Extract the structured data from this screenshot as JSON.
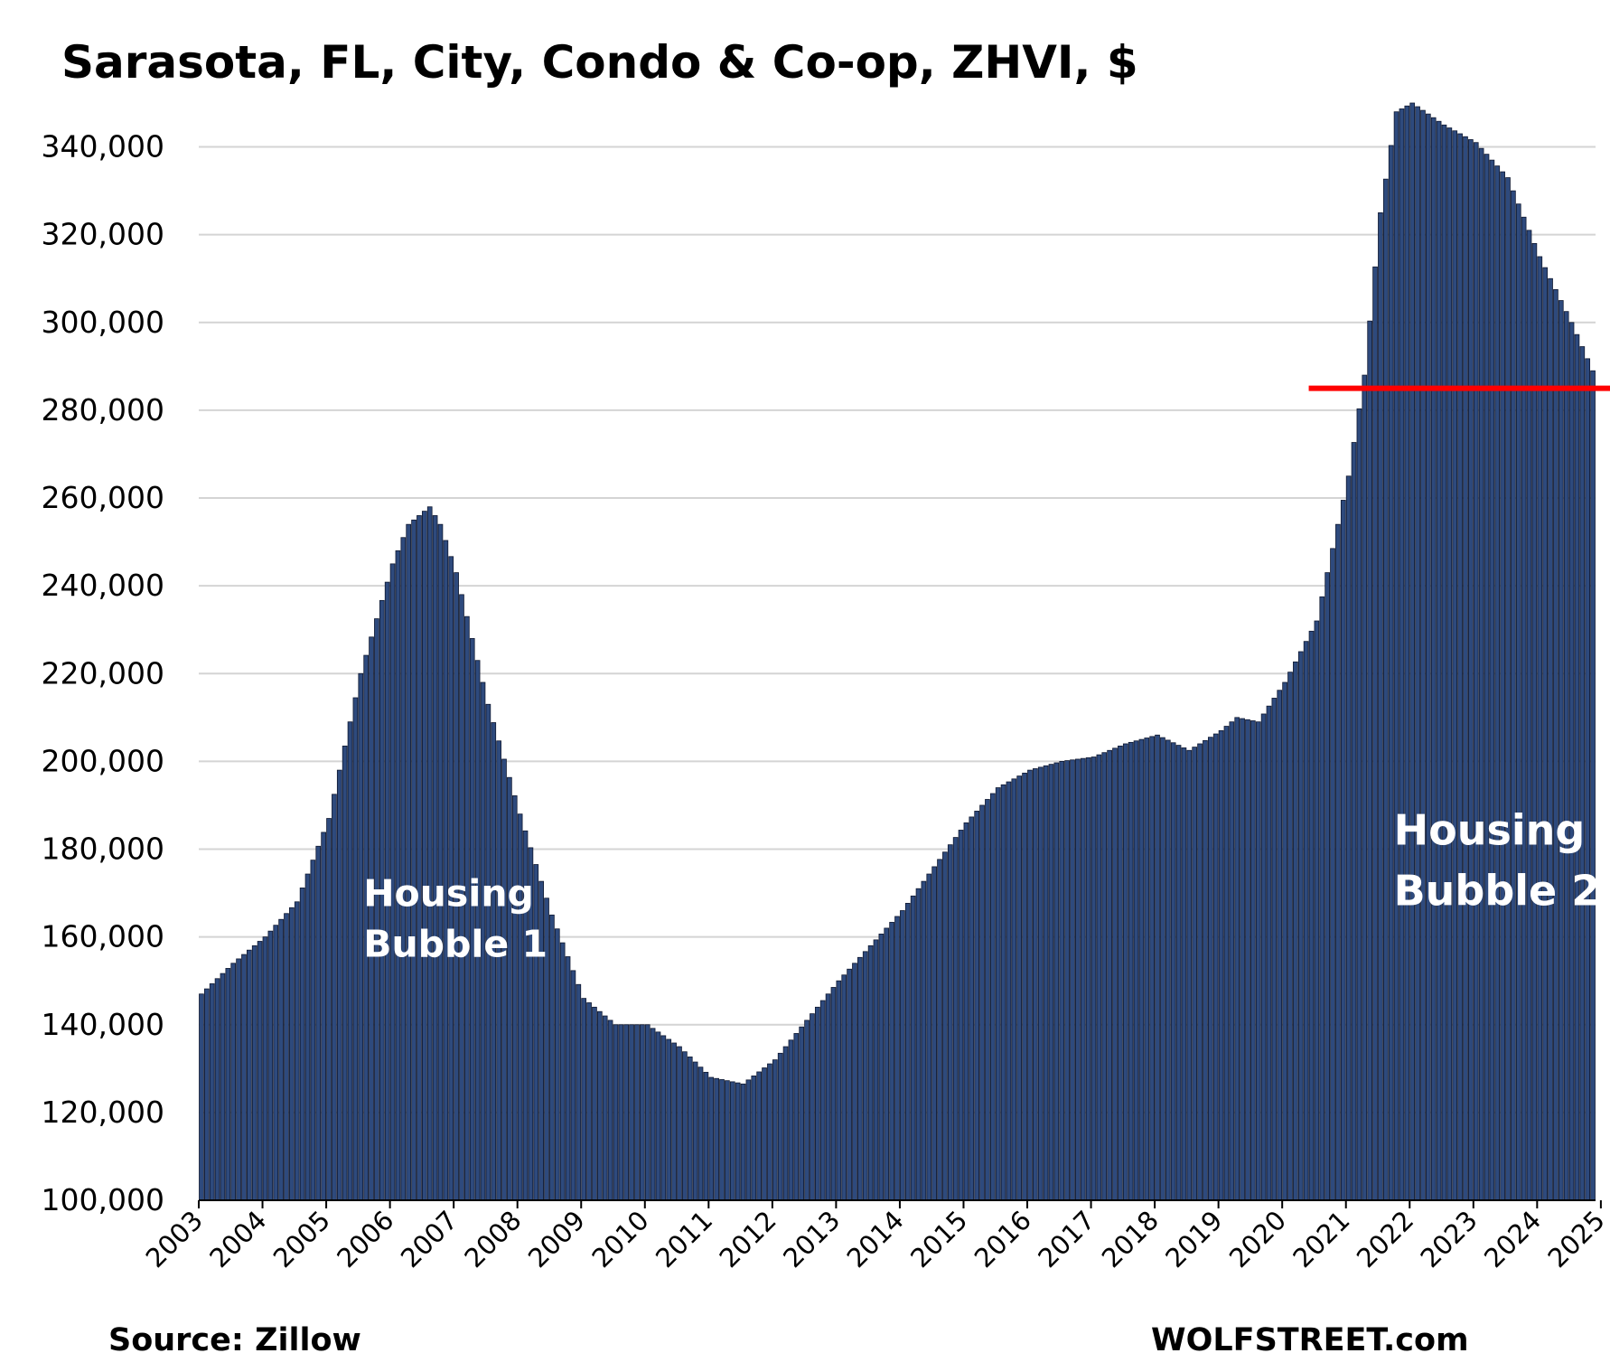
{
  "chart_data": {
    "type": "bar",
    "title": "Sarasota, FL, City, Condo & Co-op, ZHVI, $",
    "xlabel": "",
    "ylabel": "",
    "ylim": [
      100000,
      350000
    ],
    "y_ticks": [
      "100,000",
      "120,000",
      "140,000",
      "160,000",
      "180,000",
      "200,000",
      "220,000",
      "240,000",
      "260,000",
      "280,000",
      "300,000",
      "320,000",
      "340,000"
    ],
    "x_ticks": [
      "2003",
      "2004",
      "2005",
      "2006",
      "2007",
      "2008",
      "2009",
      "2010",
      "2011",
      "2012",
      "2013",
      "2014",
      "2015",
      "2016",
      "2017",
      "2018",
      "2019",
      "2020",
      "2021",
      "2022",
      "2023",
      "2024",
      "2025"
    ],
    "grid": "horizontal",
    "bar_color": "#2e4a7d",
    "bar_edge_color": "#0f1830",
    "frequency": "monthly",
    "start": "2003-01",
    "anchors": [
      [
        "2003-01",
        147000
      ],
      [
        "2003-07",
        154000
      ],
      [
        "2004-01",
        160000
      ],
      [
        "2004-07",
        168000
      ],
      [
        "2005-01",
        187000
      ],
      [
        "2005-07",
        220000
      ],
      [
        "2006-01",
        245000
      ],
      [
        "2006-04",
        254000
      ],
      [
        "2006-08",
        258000
      ],
      [
        "2006-10",
        254000
      ],
      [
        "2007-01",
        243000
      ],
      [
        "2007-07",
        213000
      ],
      [
        "2008-01",
        188000
      ],
      [
        "2008-07",
        165000
      ],
      [
        "2009-01",
        146000
      ],
      [
        "2009-07",
        140000
      ],
      [
        "2010-01",
        140000
      ],
      [
        "2010-07",
        135000
      ],
      [
        "2011-01",
        128000
      ],
      [
        "2011-07",
        126500
      ],
      [
        "2012-01",
        132000
      ],
      [
        "2012-07",
        141000
      ],
      [
        "2013-01",
        150000
      ],
      [
        "2013-07",
        158000
      ],
      [
        "2014-01",
        166000
      ],
      [
        "2014-07",
        176000
      ],
      [
        "2015-01",
        186000
      ],
      [
        "2015-07",
        194000
      ],
      [
        "2016-01",
        198000
      ],
      [
        "2016-07",
        200000
      ],
      [
        "2017-01",
        201000
      ],
      [
        "2017-07",
        204000
      ],
      [
        "2018-01",
        206000
      ],
      [
        "2018-07",
        202500
      ],
      [
        "2019-01",
        207000
      ],
      [
        "2019-04",
        210000
      ],
      [
        "2019-08",
        209000
      ],
      [
        "2020-01",
        218000
      ],
      [
        "2020-07",
        232000
      ],
      [
        "2021-01",
        265000
      ],
      [
        "2021-04",
        288000
      ],
      [
        "2021-07",
        325000
      ],
      [
        "2021-10",
        348000
      ],
      [
        "2022-01",
        350000
      ],
      [
        "2022-07",
        345000
      ],
      [
        "2023-01",
        341000
      ],
      [
        "2023-07",
        333000
      ],
      [
        "2024-01",
        315000
      ],
      [
        "2024-07",
        300000
      ],
      [
        "2024-11",
        289000
      ]
    ],
    "reference_line": {
      "value": 285000,
      "from": "2020-06",
      "color": "#ff0000"
    },
    "annotations": [
      {
        "text": [
          "Housing",
          "Bubble 1"
        ],
        "near": "2005-08"
      },
      {
        "text": [
          "Housing",
          "Bubble 2"
        ],
        "near": "2021-10"
      }
    ],
    "source": "Source: Zillow",
    "credit": "WOLFSTREET.com"
  }
}
